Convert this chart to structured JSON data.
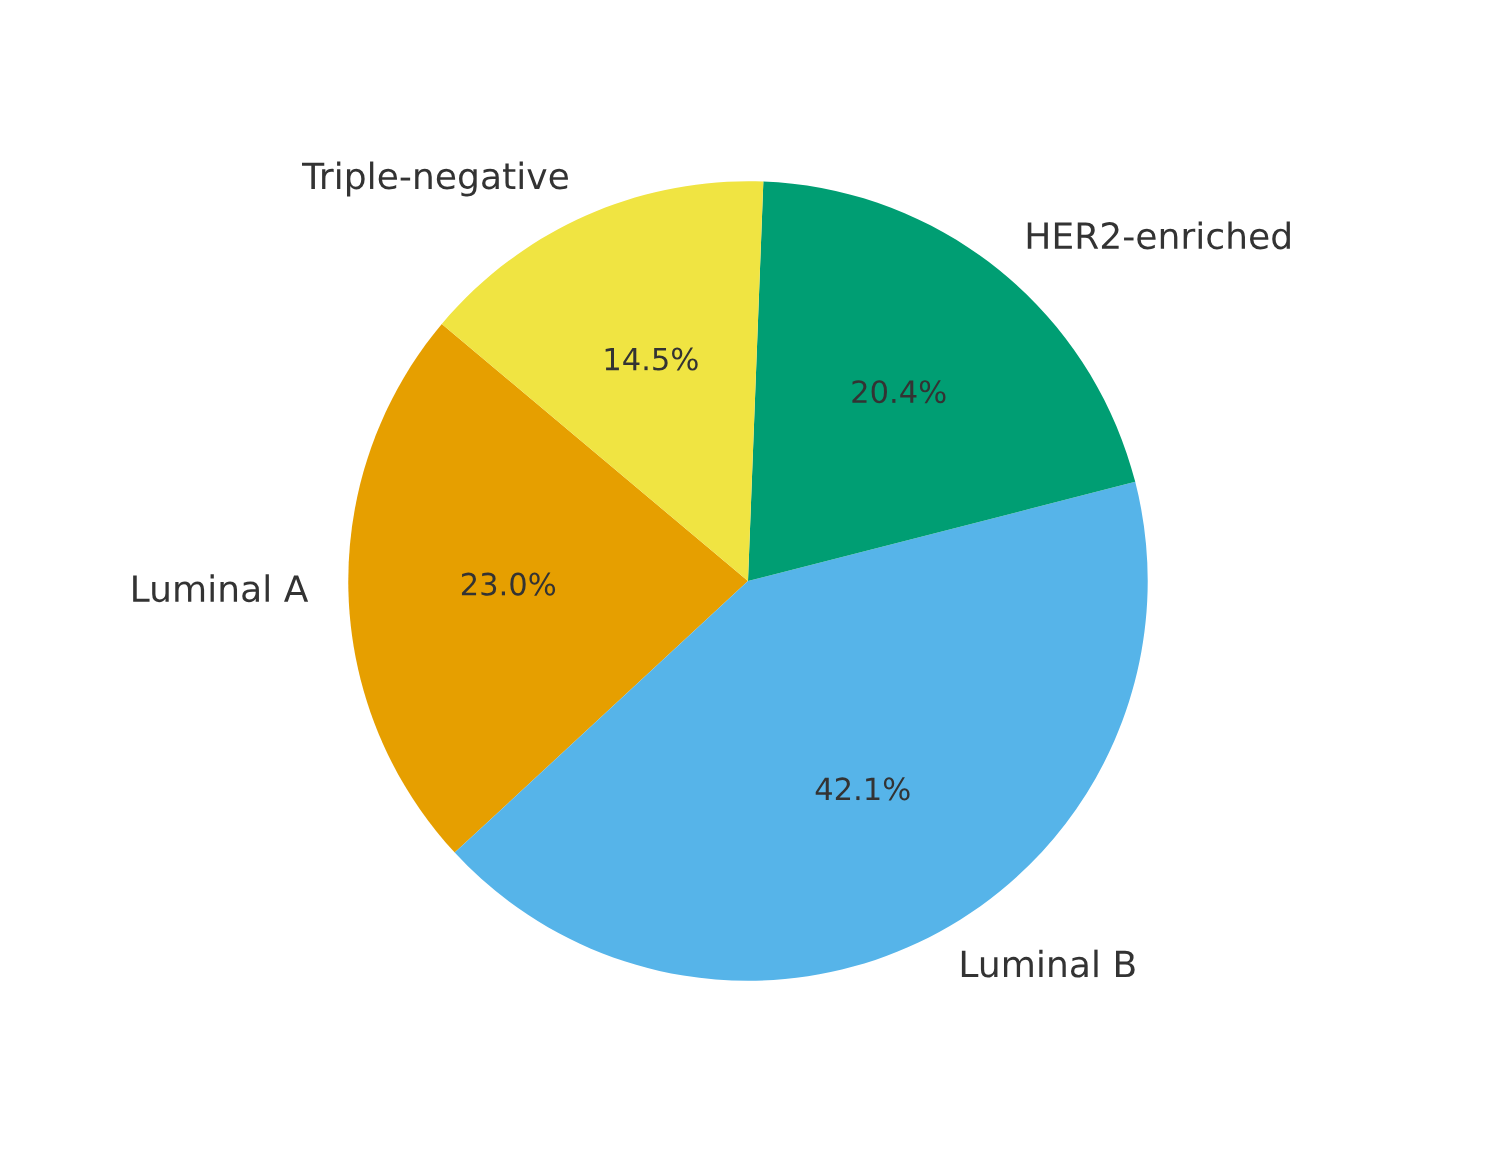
{
  "chart_data": {
    "type": "pie",
    "categories": [
      "Luminal A",
      "Luminal B",
      "HER2-enriched",
      "Triple-negative"
    ],
    "values": [
      23.0,
      42.1,
      20.4,
      14.5
    ],
    "value_labels": [
      "23.0%",
      "42.1%",
      "20.4%",
      "14.5%"
    ],
    "colors": [
      "#e69f00",
      "#56b4e9",
      "#009e73",
      "#f0e442"
    ]
  }
}
